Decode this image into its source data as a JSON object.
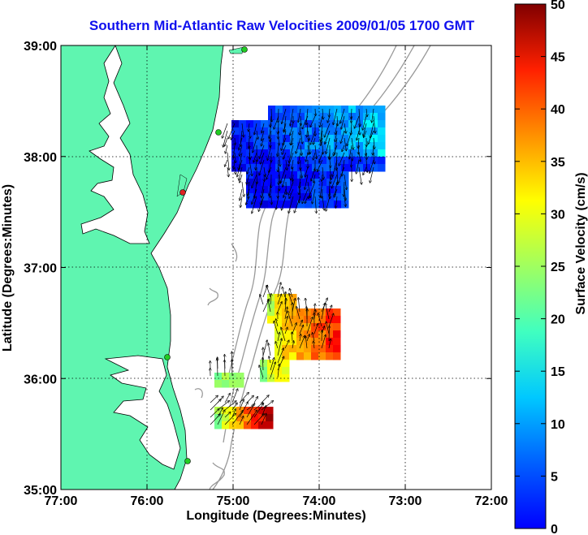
{
  "title": "Southern Mid-Atlantic Raw Velocities 2009/01/05 1700 GMT",
  "chart_data": {
    "type": "map",
    "xlabel": "Longitude (Degrees:Minutes)",
    "ylabel": "Latitude (Degrees:Minutes)",
    "x_ticks": [
      "77:00",
      "76:00",
      "75:00",
      "74:00",
      "73:00",
      "72:00"
    ],
    "y_ticks": [
      "39:00",
      "38:00",
      "37:00",
      "36:00",
      "35:00"
    ],
    "xlim": [
      -77,
      -72
    ],
    "ylim": [
      35,
      39
    ],
    "grid": true,
    "colorbar": {
      "label": "Surface Velocity (cm/s)",
      "range": [
        0,
        50
      ],
      "ticks": [
        "0",
        "5",
        "10",
        "15",
        "20",
        "25",
        "30",
        "35",
        "40",
        "45",
        "50"
      ],
      "colormap": "jet"
    },
    "colors": {
      "land": "#5ff5b0",
      "title": "#1010ee",
      "bathymetry": "#999999"
    }
  }
}
